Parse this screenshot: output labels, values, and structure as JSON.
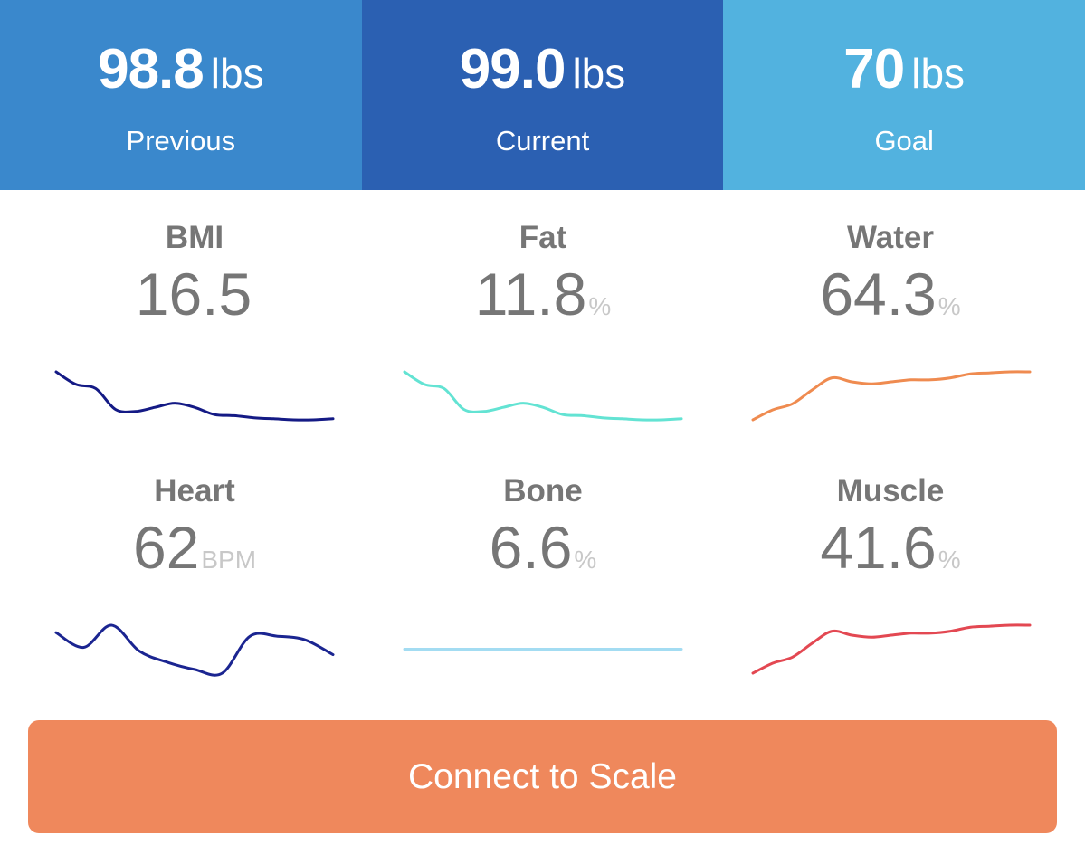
{
  "header": {
    "previous": {
      "value": "98.8",
      "unit": "lbs",
      "label": "Previous",
      "color": "#3a88cc"
    },
    "current": {
      "value": "99.0",
      "unit": "lbs",
      "label": "Current",
      "color": "#2b60b2"
    },
    "goal": {
      "value": "70",
      "unit": "lbs",
      "label": "Goal",
      "color": "#52b2df"
    }
  },
  "metrics": [
    {
      "title": "BMI",
      "value": "16.5",
      "unit": "",
      "trend_color": "#141a85",
      "icon": "trend-sparkline",
      "trend": [
        0.88,
        0.76,
        0.72,
        0.52,
        0.5,
        0.54,
        0.58,
        0.54,
        0.47,
        0.46,
        0.44,
        0.43,
        0.42,
        0.42,
        0.43
      ]
    },
    {
      "title": "Fat",
      "value": "11.8",
      "unit": "%",
      "trend_color": "#63e3d3",
      "icon": "trend-sparkline",
      "trend": [
        0.88,
        0.76,
        0.72,
        0.52,
        0.5,
        0.54,
        0.58,
        0.54,
        0.47,
        0.46,
        0.44,
        0.43,
        0.42,
        0.42,
        0.43
      ]
    },
    {
      "title": "Water",
      "value": "64.3",
      "unit": "%",
      "trend_color": "#ef8b50",
      "icon": "trend-sparkline",
      "trend": [
        0.5,
        0.6,
        0.66,
        0.8,
        0.92,
        0.88,
        0.86,
        0.88,
        0.9,
        0.9,
        0.92,
        0.96,
        0.97,
        0.98,
        0.98
      ]
    },
    {
      "title": "Heart",
      "value": "62",
      "unit": "BPM",
      "trend_color": "#1b2591",
      "icon": "trend-sparkline",
      "trend": [
        62,
        58,
        64,
        57,
        54,
        52,
        51,
        61,
        61,
        60,
        56
      ]
    },
    {
      "title": "Bone",
      "value": "6.6",
      "unit": "%",
      "trend_color": "#a3dcf2",
      "icon": "trend-sparkline",
      "trend": [
        0.5,
        0.5,
        0.5,
        0.5,
        0.5,
        0.5
      ]
    },
    {
      "title": "Muscle",
      "value": "41.6",
      "unit": "%",
      "trend_color": "#e34852",
      "icon": "trend-sparkline",
      "trend": [
        0.5,
        0.6,
        0.66,
        0.8,
        0.92,
        0.88,
        0.86,
        0.88,
        0.9,
        0.9,
        0.92,
        0.96,
        0.97,
        0.98,
        0.98
      ]
    }
  ],
  "connect": {
    "label": "Connect to Scale",
    "color": "#ef885c"
  }
}
